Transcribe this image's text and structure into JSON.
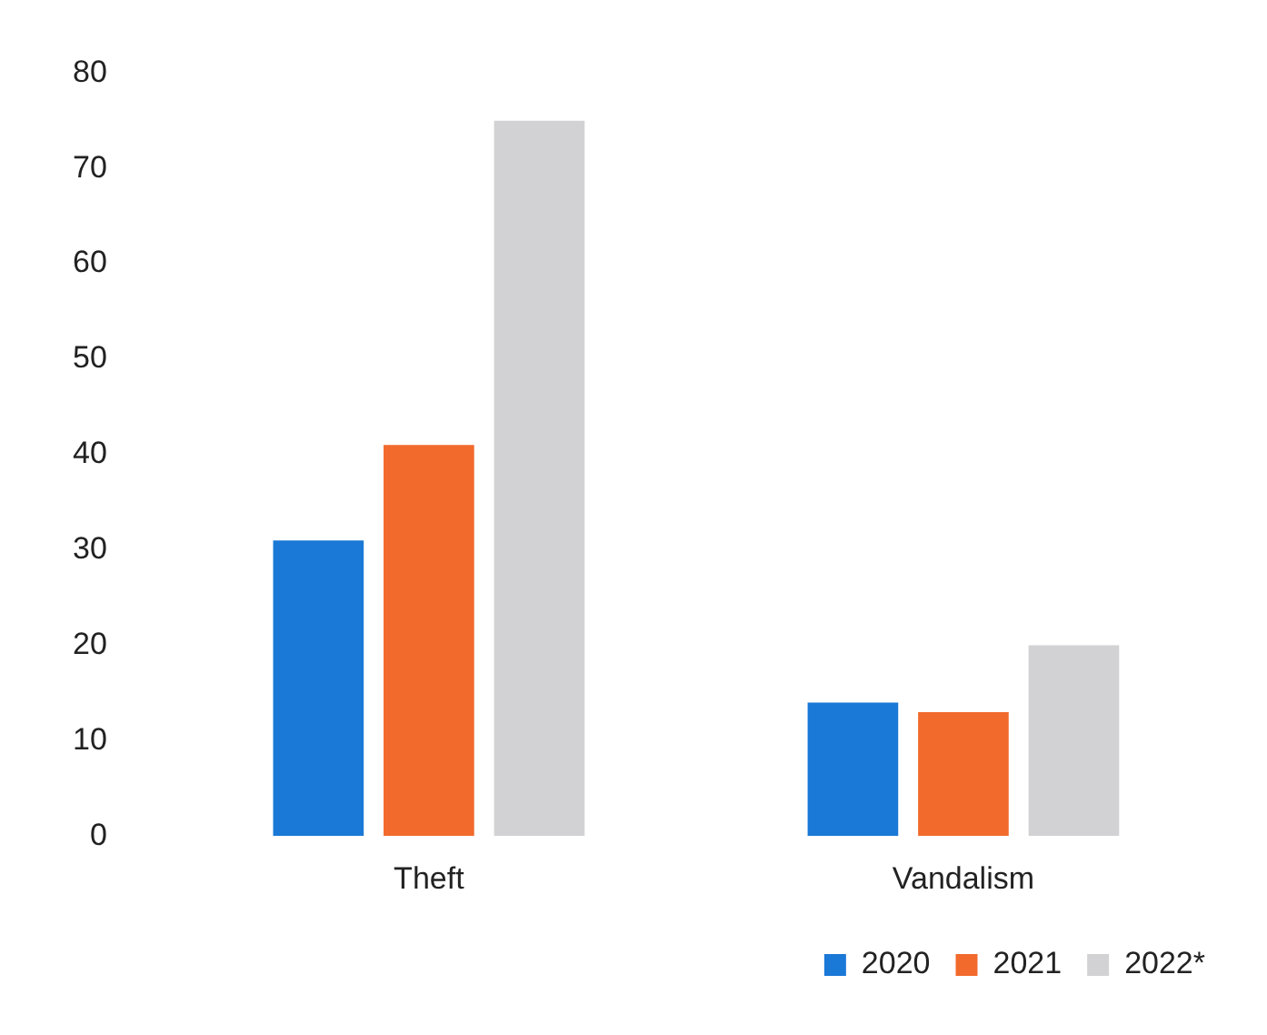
{
  "chart_data": {
    "type": "bar",
    "categories": [
      "Theft",
      "Vandalism"
    ],
    "series": [
      {
        "name": "2020",
        "color": "#1a78d6",
        "values": [
          31,
          14
        ]
      },
      {
        "name": "2021",
        "color": "#f26a2c",
        "values": [
          41,
          13
        ]
      },
      {
        "name": "2022*",
        "color": "#d2d2d4",
        "values": [
          75,
          20
        ]
      }
    ],
    "ylim": [
      0,
      80
    ],
    "yticks": [
      0,
      10,
      20,
      30,
      40,
      50,
      60,
      70,
      80
    ],
    "grid": false,
    "legend": "bottom right"
  }
}
